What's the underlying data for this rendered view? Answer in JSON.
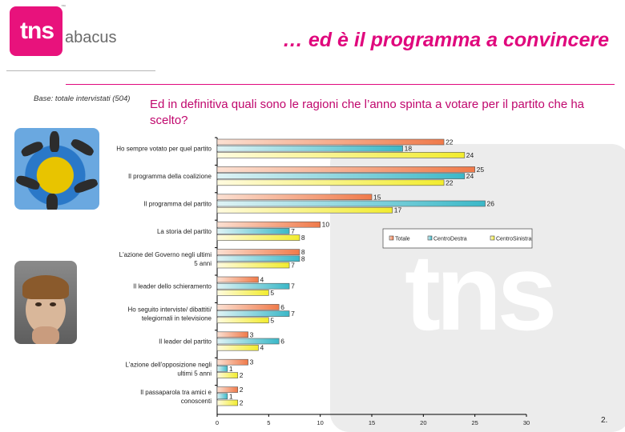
{
  "brand": {
    "logo_main": "tns",
    "logo_sub": "abacus",
    "logo_tm": "™",
    "watermark": "tns"
  },
  "headline": "… ed è il programma a convincere",
  "base_note": "Base: totale intervistati (504)",
  "question": "Ed in definitiva quali sono le ragioni che l’anno spinta a votare per il partito che ha scelto?",
  "page_number": "2.",
  "colors": {
    "accent": "#e0087d",
    "totale": "#f07a4a",
    "centrodestra": "#3bb8c8",
    "centrosinistra": "#f2ec2e"
  },
  "chart_data": {
    "type": "bar",
    "orientation": "horizontal",
    "categories": [
      [
        "Ho sempre votato per quel partito"
      ],
      [
        "Il programma della coalizione"
      ],
      [
        "Il programma del partito"
      ],
      [
        "La storia del partito"
      ],
      [
        "L'azione del Governo negli ultimi",
        "5 anni"
      ],
      [
        "Il leader dello schieramento"
      ],
      [
        "Ho seguito interviste/ dibattiti/",
        "telegiornali in televisione"
      ],
      [
        "Il leader del partito"
      ],
      [
        "L'azione dell'opposizione negli",
        "ultimi 5 anni"
      ],
      [
        "Il passaparola tra amici e",
        "conoscenti"
      ]
    ],
    "series": [
      {
        "name": "Totale",
        "values": [
          22,
          25,
          15,
          10,
          8,
          4,
          6,
          3,
          3,
          2
        ]
      },
      {
        "name": "CentroDestra",
        "values": [
          18,
          24,
          26,
          7,
          8,
          7,
          7,
          6,
          1,
          1
        ]
      },
      {
        "name": "CentroSinistra",
        "values": [
          24,
          22,
          17,
          8,
          7,
          5,
          5,
          4,
          2,
          2
        ]
      }
    ],
    "xlim": [
      0,
      30
    ],
    "xticks": [
      0,
      5,
      10,
      15,
      20,
      25,
      30
    ],
    "legend_position": "right"
  }
}
